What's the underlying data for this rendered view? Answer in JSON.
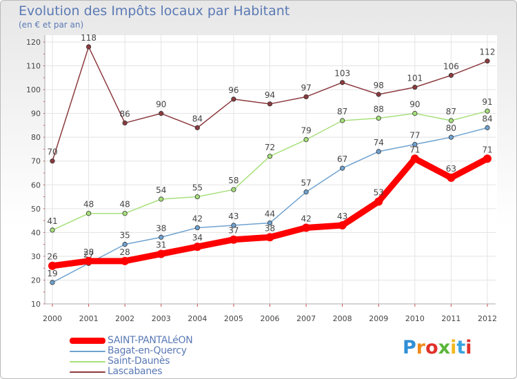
{
  "title": "Evolution des Impôts locaux par Habitant",
  "subtitle": "(en € et par an)",
  "brand": {
    "letters": [
      "P",
      "r",
      "o",
      "x",
      "i",
      "t",
      "i"
    ],
    "colors": [
      "#2f8fd6",
      "#f08a1c",
      "#e0312a",
      "#5ab53a",
      "#f2b81c",
      "#3aa4e0",
      "#e0312a"
    ]
  },
  "chart_data": {
    "type": "line",
    "title": "Evolution des Impôts locaux par Habitant",
    "subtitle": "(en € et par an)",
    "x": [
      "2000",
      "2001",
      "2002",
      "2003",
      "2004",
      "2005",
      "2006",
      "2007",
      "2008",
      "2009",
      "2010",
      "2011",
      "2012"
    ],
    "ylim": [
      10,
      120
    ],
    "yticks": [
      "10",
      "20",
      "30",
      "40",
      "50",
      "60",
      "70",
      "80",
      "90",
      "100",
      "110",
      "120"
    ],
    "grid": true,
    "legend_position": "bottom-left",
    "series": [
      {
        "name": "Lascabanes",
        "color": "#8c3a3f",
        "values": [
          70,
          118,
          86,
          90,
          84,
          96,
          94,
          97,
          103,
          98,
          101,
          106,
          112
        ]
      },
      {
        "name": "Saint-Daunès",
        "color": "#a7e07b",
        "values": [
          41,
          48,
          48,
          54,
          55,
          58,
          72,
          79,
          87,
          88,
          90,
          87,
          91
        ]
      },
      {
        "name": "Bagat-en-Quercy",
        "color": "#6fa2d0",
        "values": [
          19,
          27,
          35,
          38,
          42,
          43,
          44,
          57,
          67,
          74,
          77,
          80,
          84
        ]
      },
      {
        "name": "SAINT-PANTALéON",
        "color": "#ff0000",
        "values": [
          26,
          28,
          28,
          31,
          34,
          37,
          38,
          42,
          43,
          53,
          71,
          63,
          71
        ]
      }
    ]
  }
}
